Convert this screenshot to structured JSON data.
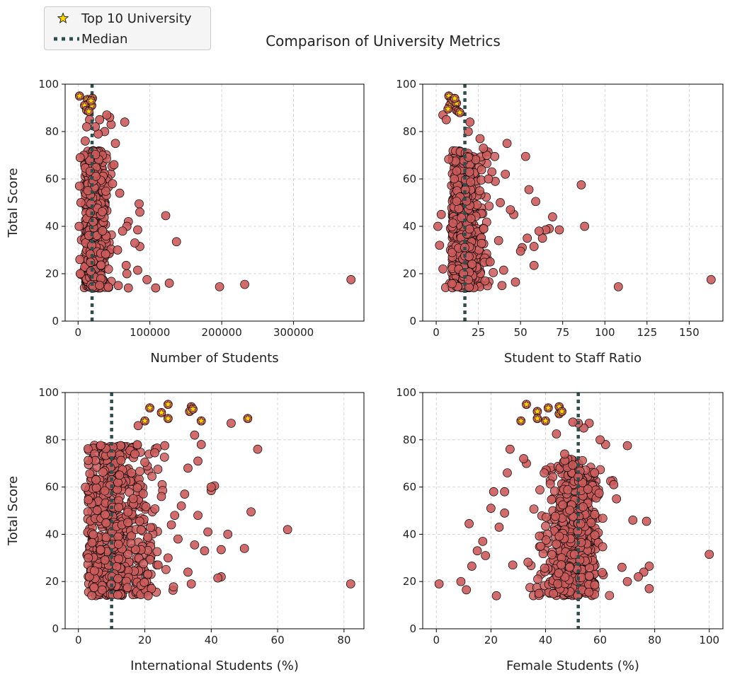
{
  "title": "Comparison of University Metrics",
  "legend": {
    "star_label": "Top 10 University",
    "median_label": "Median"
  },
  "colors": {
    "point": "#cd5c5c",
    "top10": "#ffd700",
    "median": "#2f4f4f",
    "grid": "#cccccc"
  },
  "chart_data": [
    {
      "type": "scatter",
      "xlabel": "Number of Students",
      "ylabel": "Total Score",
      "xlim": [
        -18000,
        398000
      ],
      "ylim": [
        0,
        100
      ],
      "xticks": [
        0,
        100000,
        200000,
        300000
      ],
      "yticks": [
        0,
        20,
        40,
        60,
        80,
        100
      ],
      "median": 19500,
      "dense": {
        "x_range": [
          2000,
          52000
        ],
        "y_range": [
          14,
          72
        ],
        "count": 560,
        "x_peak": 18000
      },
      "points": [
        [
          380000,
          17.5
        ],
        [
          232000,
          15.5
        ],
        [
          197000,
          14.5
        ],
        [
          137000,
          33.5
        ],
        [
          122000,
          44.5
        ],
        [
          127000,
          16
        ],
        [
          108000,
          14
        ],
        [
          96000,
          17.5
        ],
        [
          85000,
          49.5
        ],
        [
          86000,
          46
        ],
        [
          83000,
          38.5
        ],
        [
          86000,
          31.5
        ],
        [
          83000,
          21.5
        ],
        [
          79000,
          33
        ],
        [
          70000,
          42
        ],
        [
          68000,
          40
        ],
        [
          70000,
          14
        ],
        [
          68000,
          20
        ],
        [
          67000,
          23.5
        ],
        [
          65000,
          84
        ],
        [
          62000,
          38
        ],
        [
          58000,
          54
        ],
        [
          56000,
          15
        ],
        [
          55000,
          30
        ],
        [
          52000,
          75
        ],
        [
          50000,
          66
        ],
        [
          48000,
          58
        ],
        [
          46000,
          83
        ],
        [
          44000,
          86
        ],
        [
          40000,
          87
        ],
        [
          37000,
          80
        ],
        [
          30000,
          85
        ],
        [
          28000,
          79
        ],
        [
          24000,
          82
        ],
        [
          16000,
          85
        ],
        [
          12000,
          82
        ],
        [
          10000,
          76
        ],
        [
          8000,
          70
        ],
        [
          3000,
          69
        ],
        [
          2000,
          57
        ],
        [
          4000,
          50
        ],
        [
          1500,
          40
        ],
        [
          2500,
          26
        ],
        [
          3000,
          20
        ]
      ],
      "top10": [
        [
          2000,
          95
        ],
        [
          13000,
          93.5
        ],
        [
          16000,
          92
        ],
        [
          20000,
          94
        ],
        [
          19000,
          91
        ],
        [
          9000,
          91
        ],
        [
          12000,
          89
        ],
        [
          15000,
          88.5
        ],
        [
          18000,
          93
        ]
      ]
    },
    {
      "type": "scatter",
      "xlabel": "Student to Staff Ratio",
      "ylabel": "",
      "xlim": [
        -8,
        170
      ],
      "ylim": [
        0,
        100
      ],
      "xticks": [
        0,
        25,
        50,
        75,
        100,
        125,
        150
      ],
      "yticks": [
        0,
        20,
        40,
        60,
        80,
        100
      ],
      "median": 17,
      "dense": {
        "x_range": [
          3,
          36
        ],
        "y_range": [
          14,
          72
        ],
        "count": 560,
        "x_peak": 15
      },
      "points": [
        [
          163,
          17.5
        ],
        [
          108,
          14.5
        ],
        [
          88,
          40
        ],
        [
          86,
          57.5
        ],
        [
          73,
          38.5
        ],
        [
          69,
          44
        ],
        [
          67,
          39
        ],
        [
          65,
          38.5
        ],
        [
          63,
          35
        ],
        [
          61,
          38
        ],
        [
          59,
          50.5
        ],
        [
          58,
          31.5
        ],
        [
          58,
          23.5
        ],
        [
          55,
          55.5
        ],
        [
          54,
          35
        ],
        [
          53,
          69.5
        ],
        [
          51,
          31
        ],
        [
          50,
          29.5
        ],
        [
          47,
          16.5
        ],
        [
          46,
          45
        ],
        [
          44,
          47
        ],
        [
          42,
          75
        ],
        [
          41,
          62
        ],
        [
          40,
          21.5
        ],
        [
          39,
          15
        ],
        [
          38,
          50
        ],
        [
          37,
          34
        ],
        [
          35,
          59
        ],
        [
          33,
          63
        ],
        [
          31,
          60
        ],
        [
          32,
          25
        ],
        [
          30,
          70
        ],
        [
          28,
          73
        ],
        [
          26,
          77
        ],
        [
          20,
          84
        ],
        [
          19,
          80
        ],
        [
          4,
          87
        ],
        [
          6,
          85
        ],
        [
          3,
          45
        ],
        [
          1,
          40
        ],
        [
          2,
          32
        ],
        [
          4,
          22
        ]
      ],
      "top10": [
        [
          7.5,
          95
        ],
        [
          9,
          93
        ],
        [
          8,
          91
        ],
        [
          10,
          93
        ],
        [
          12,
          92
        ],
        [
          12,
          89
        ],
        [
          13,
          88.5
        ],
        [
          7,
          89.5
        ],
        [
          11,
          94
        ],
        [
          14,
          88
        ]
      ]
    },
    {
      "type": "scatter",
      "xlabel": "International Students (%)",
      "ylabel": "Total Score",
      "xlim": [
        -4,
        86
      ],
      "ylim": [
        0,
        100
      ],
      "xticks": [
        0,
        20,
        40,
        60,
        80
      ],
      "yticks": [
        0,
        20,
        40,
        60,
        80,
        100
      ],
      "median": 10,
      "dense": {
        "x_range": [
          0,
          30
        ],
        "y_range": [
          14,
          78
        ],
        "count": 600,
        "x_peak": 8
      },
      "points": [
        [
          82,
          19
        ],
        [
          63,
          42
        ],
        [
          54,
          76
        ],
        [
          52,
          49.5
        ],
        [
          50,
          34
        ],
        [
          46,
          87
        ],
        [
          45,
          40
        ],
        [
          43,
          33.5
        ],
        [
          43,
          22
        ],
        [
          42,
          21.5
        ],
        [
          41,
          60.5
        ],
        [
          40,
          58.5
        ],
        [
          40,
          60
        ],
        [
          39,
          41
        ],
        [
          38,
          33
        ],
        [
          37,
          78
        ],
        [
          36,
          71
        ],
        [
          36,
          48
        ],
        [
          35,
          82
        ],
        [
          35,
          35.5
        ],
        [
          34,
          19
        ],
        [
          33,
          24
        ],
        [
          33,
          68
        ],
        [
          32,
          57
        ],
        [
          31,
          52
        ],
        [
          30,
          38
        ],
        [
          29,
          48
        ],
        [
          28,
          44
        ],
        [
          27,
          30
        ],
        [
          26,
          77.5
        ],
        [
          25,
          56
        ],
        [
          24,
          27
        ],
        [
          23,
          74.5
        ],
        [
          22,
          17
        ],
        [
          21,
          14
        ],
        [
          20,
          70.5
        ],
        [
          18,
          86
        ],
        [
          17,
          74
        ],
        [
          16,
          66
        ]
      ],
      "top10": [
        [
          21.5,
          93.5
        ],
        [
          25,
          91.5
        ],
        [
          27,
          95
        ],
        [
          27,
          89
        ],
        [
          20,
          88
        ],
        [
          34,
          94
        ],
        [
          33.5,
          92
        ],
        [
          34.5,
          93
        ],
        [
          37,
          88
        ],
        [
          51,
          89
        ]
      ]
    },
    {
      "type": "scatter",
      "xlabel": "Female Students (%)",
      "ylabel": "",
      "xlim": [
        -5,
        105
      ],
      "ylim": [
        0,
        100
      ],
      "xticks": [
        0,
        20,
        40,
        60,
        80,
        100
      ],
      "yticks": [
        0,
        20,
        40,
        60,
        80,
        100
      ],
      "median": 52,
      "dense": {
        "x_range": [
          30,
          68
        ],
        "y_range": [
          14,
          72
        ],
        "count": 560,
        "x_peak": 52
      },
      "points": [
        [
          100,
          31.5
        ],
        [
          78,
          26.5
        ],
        [
          78,
          17
        ],
        [
          77,
          45.5
        ],
        [
          76,
          24
        ],
        [
          74,
          22
        ],
        [
          72,
          46
        ],
        [
          70,
          77.5
        ],
        [
          70,
          20
        ],
        [
          68,
          26
        ],
        [
          66,
          55
        ],
        [
          65,
          61
        ],
        [
          62,
          78
        ],
        [
          60,
          80
        ],
        [
          58,
          66
        ],
        [
          56,
          87
        ],
        [
          54,
          85
        ],
        [
          52,
          87
        ],
        [
          50,
          87.5
        ],
        [
          47,
          74
        ],
        [
          44,
          82.5
        ],
        [
          33,
          70
        ],
        [
          32,
          72
        ],
        [
          27,
          76
        ],
        [
          26,
          66
        ],
        [
          25,
          58
        ],
        [
          22,
          14
        ],
        [
          21,
          58
        ],
        [
          20,
          51
        ],
        [
          18,
          31
        ],
        [
          17,
          37
        ],
        [
          15,
          33
        ],
        [
          13,
          26.5
        ],
        [
          12,
          44.5
        ],
        [
          11,
          16.5
        ],
        [
          9,
          20
        ],
        [
          1,
          19
        ],
        [
          23,
          43
        ],
        [
          25,
          49
        ],
        [
          28,
          27
        ]
      ],
      "top10": [
        [
          31,
          88
        ],
        [
          33,
          95
        ],
        [
          37,
          92
        ],
        [
          37,
          89
        ],
        [
          40,
          88
        ],
        [
          41,
          93.5
        ],
        [
          45,
          91
        ],
        [
          45,
          94
        ],
        [
          46,
          92
        ]
      ]
    }
  ]
}
